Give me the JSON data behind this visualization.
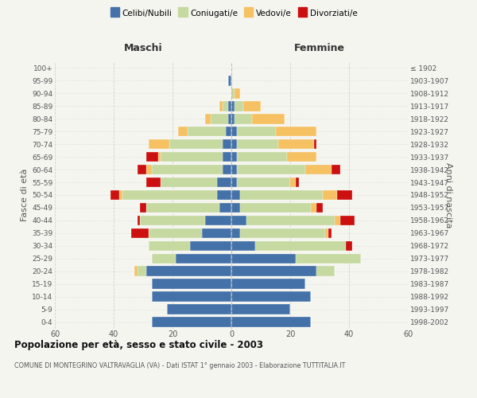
{
  "age_groups": [
    "0-4",
    "5-9",
    "10-14",
    "15-19",
    "20-24",
    "25-29",
    "30-34",
    "35-39",
    "40-44",
    "45-49",
    "50-54",
    "55-59",
    "60-64",
    "65-69",
    "70-74",
    "75-79",
    "80-84",
    "85-89",
    "90-94",
    "95-99",
    "100+"
  ],
  "birth_years": [
    "1998-2002",
    "1993-1997",
    "1988-1992",
    "1983-1987",
    "1978-1982",
    "1973-1977",
    "1968-1972",
    "1963-1967",
    "1958-1962",
    "1953-1957",
    "1948-1952",
    "1943-1947",
    "1938-1942",
    "1933-1937",
    "1928-1932",
    "1923-1927",
    "1918-1922",
    "1913-1917",
    "1908-1912",
    "1903-1907",
    "≤ 1902"
  ],
  "maschi": {
    "celibi": [
      27,
      22,
      27,
      27,
      29,
      19,
      14,
      10,
      9,
      4,
      5,
      5,
      3,
      3,
      3,
      2,
      1,
      1,
      0,
      1,
      0
    ],
    "coniugati": [
      0,
      0,
      0,
      0,
      3,
      8,
      14,
      18,
      22,
      25,
      32,
      19,
      24,
      21,
      18,
      13,
      6,
      2,
      0,
      0,
      0
    ],
    "vedovi": [
      0,
      0,
      0,
      0,
      1,
      0,
      0,
      0,
      0,
      0,
      1,
      0,
      2,
      1,
      7,
      3,
      2,
      1,
      0,
      0,
      0
    ],
    "divorziati": [
      0,
      0,
      0,
      0,
      0,
      0,
      0,
      6,
      1,
      2,
      3,
      5,
      3,
      4,
      0,
      0,
      0,
      0,
      0,
      0,
      0
    ]
  },
  "femmine": {
    "nubili": [
      27,
      20,
      27,
      25,
      29,
      22,
      8,
      3,
      5,
      3,
      3,
      2,
      2,
      2,
      2,
      2,
      1,
      1,
      0,
      0,
      0
    ],
    "coniugate": [
      0,
      0,
      0,
      0,
      6,
      22,
      31,
      29,
      30,
      24,
      28,
      18,
      23,
      17,
      14,
      13,
      6,
      3,
      1,
      0,
      0
    ],
    "vedove": [
      0,
      0,
      0,
      0,
      0,
      0,
      0,
      1,
      2,
      2,
      5,
      2,
      9,
      10,
      12,
      14,
      11,
      6,
      2,
      0,
      0
    ],
    "divorziate": [
      0,
      0,
      0,
      0,
      0,
      0,
      2,
      1,
      5,
      2,
      5,
      1,
      3,
      0,
      1,
      0,
      0,
      0,
      0,
      0,
      0
    ]
  },
  "colors": {
    "celibi": "#4472a8",
    "coniugati": "#c5d9a0",
    "vedovi": "#f5c163",
    "divorziati": "#cc1010"
  },
  "xlim": 60,
  "title": "Popolazione per età, sesso e stato civile - 2003",
  "subtitle": "COMUNE DI MONTEGRINO VALTRAVAGLIA (VA) - Dati ISTAT 1° gennaio 2003 - Elaborazione TUTTITALIA.IT",
  "ylabel_left": "Fasce di età",
  "ylabel_right": "Anni di nascita",
  "header_left": "Maschi",
  "header_right": "Femmine",
  "legend_labels": [
    "Celibi/Nubili",
    "Coniugati/e",
    "Vedovi/e",
    "Divorziati/e"
  ],
  "bg_color": "#f5f5f0",
  "grid_color": "#cccccc"
}
